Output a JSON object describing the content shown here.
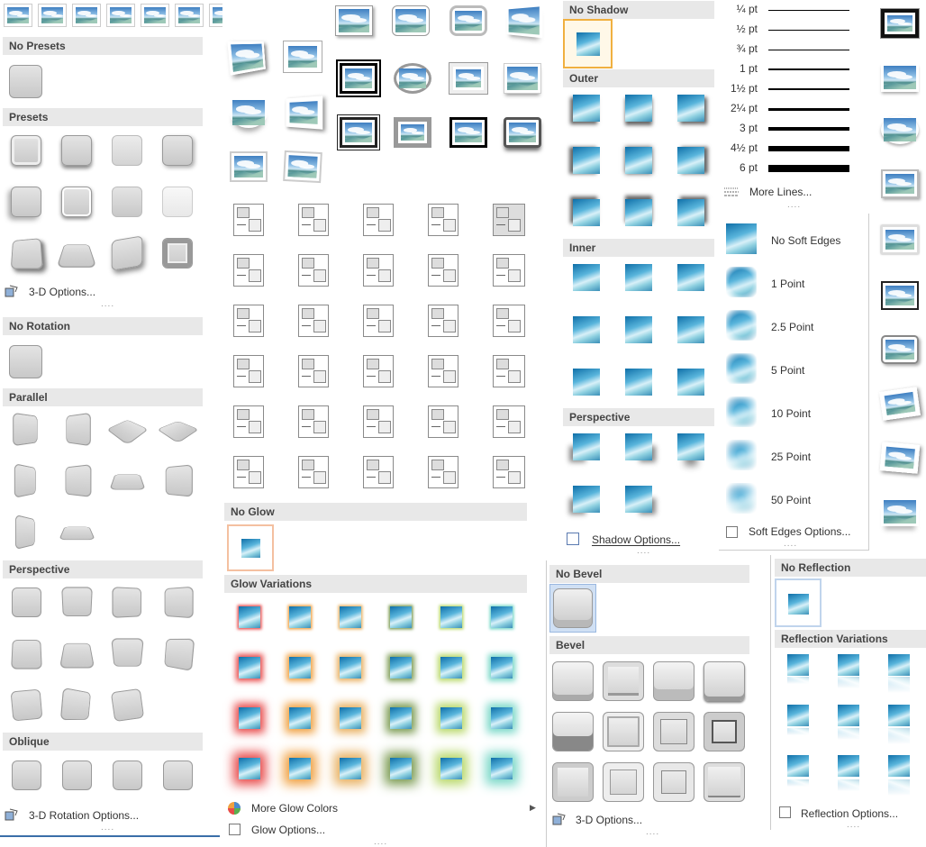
{
  "presets3d": {
    "no_presets": "No Presets",
    "presets": "Presets",
    "options": "3-D Options..."
  },
  "rotation": {
    "no_rotation": "No Rotation",
    "parallel": "Parallel",
    "perspective": "Perspective",
    "oblique": "Oblique",
    "options": "3-D Rotation Options..."
  },
  "glow": {
    "no_glow": "No Glow",
    "variations": "Glow Variations",
    "more_colors": "More Glow Colors",
    "options": "Glow Options...",
    "colors": [
      "#e84a4a",
      "#f0a040",
      "#e8b060",
      "#7a9a50",
      "#b8d86a",
      "#7ad8c8"
    ]
  },
  "shadow": {
    "no_shadow": "No Shadow",
    "outer": "Outer",
    "inner": "Inner",
    "perspective": "Perspective",
    "options": "Shadow Options..."
  },
  "weights": {
    "items": [
      {
        "label": "¼ pt",
        "w": 0.5
      },
      {
        "label": "½ pt",
        "w": 1
      },
      {
        "label": "¾ pt",
        "w": 1
      },
      {
        "label": "1 pt",
        "w": 1.5
      },
      {
        "label": "1½ pt",
        "w": 2
      },
      {
        "label": "2¼ pt",
        "w": 3
      },
      {
        "label": "3 pt",
        "w": 4
      },
      {
        "label": "4½ pt",
        "w": 6
      },
      {
        "label": "6 pt",
        "w": 8
      }
    ],
    "more": "More Lines..."
  },
  "soft_edges": {
    "items": [
      "No Soft Edges",
      "1 Point",
      "2.5 Point",
      "5 Point",
      "10 Point",
      "25 Point",
      "50 Point"
    ],
    "options": "Soft Edges Options..."
  },
  "bevel": {
    "no_bevel": "No Bevel",
    "bevel": "Bevel",
    "options": "3-D Options..."
  },
  "reflection": {
    "no_reflection": "No Reflection",
    "variations": "Reflection Variations",
    "options": "Reflection Options..."
  },
  "dots": "...."
}
